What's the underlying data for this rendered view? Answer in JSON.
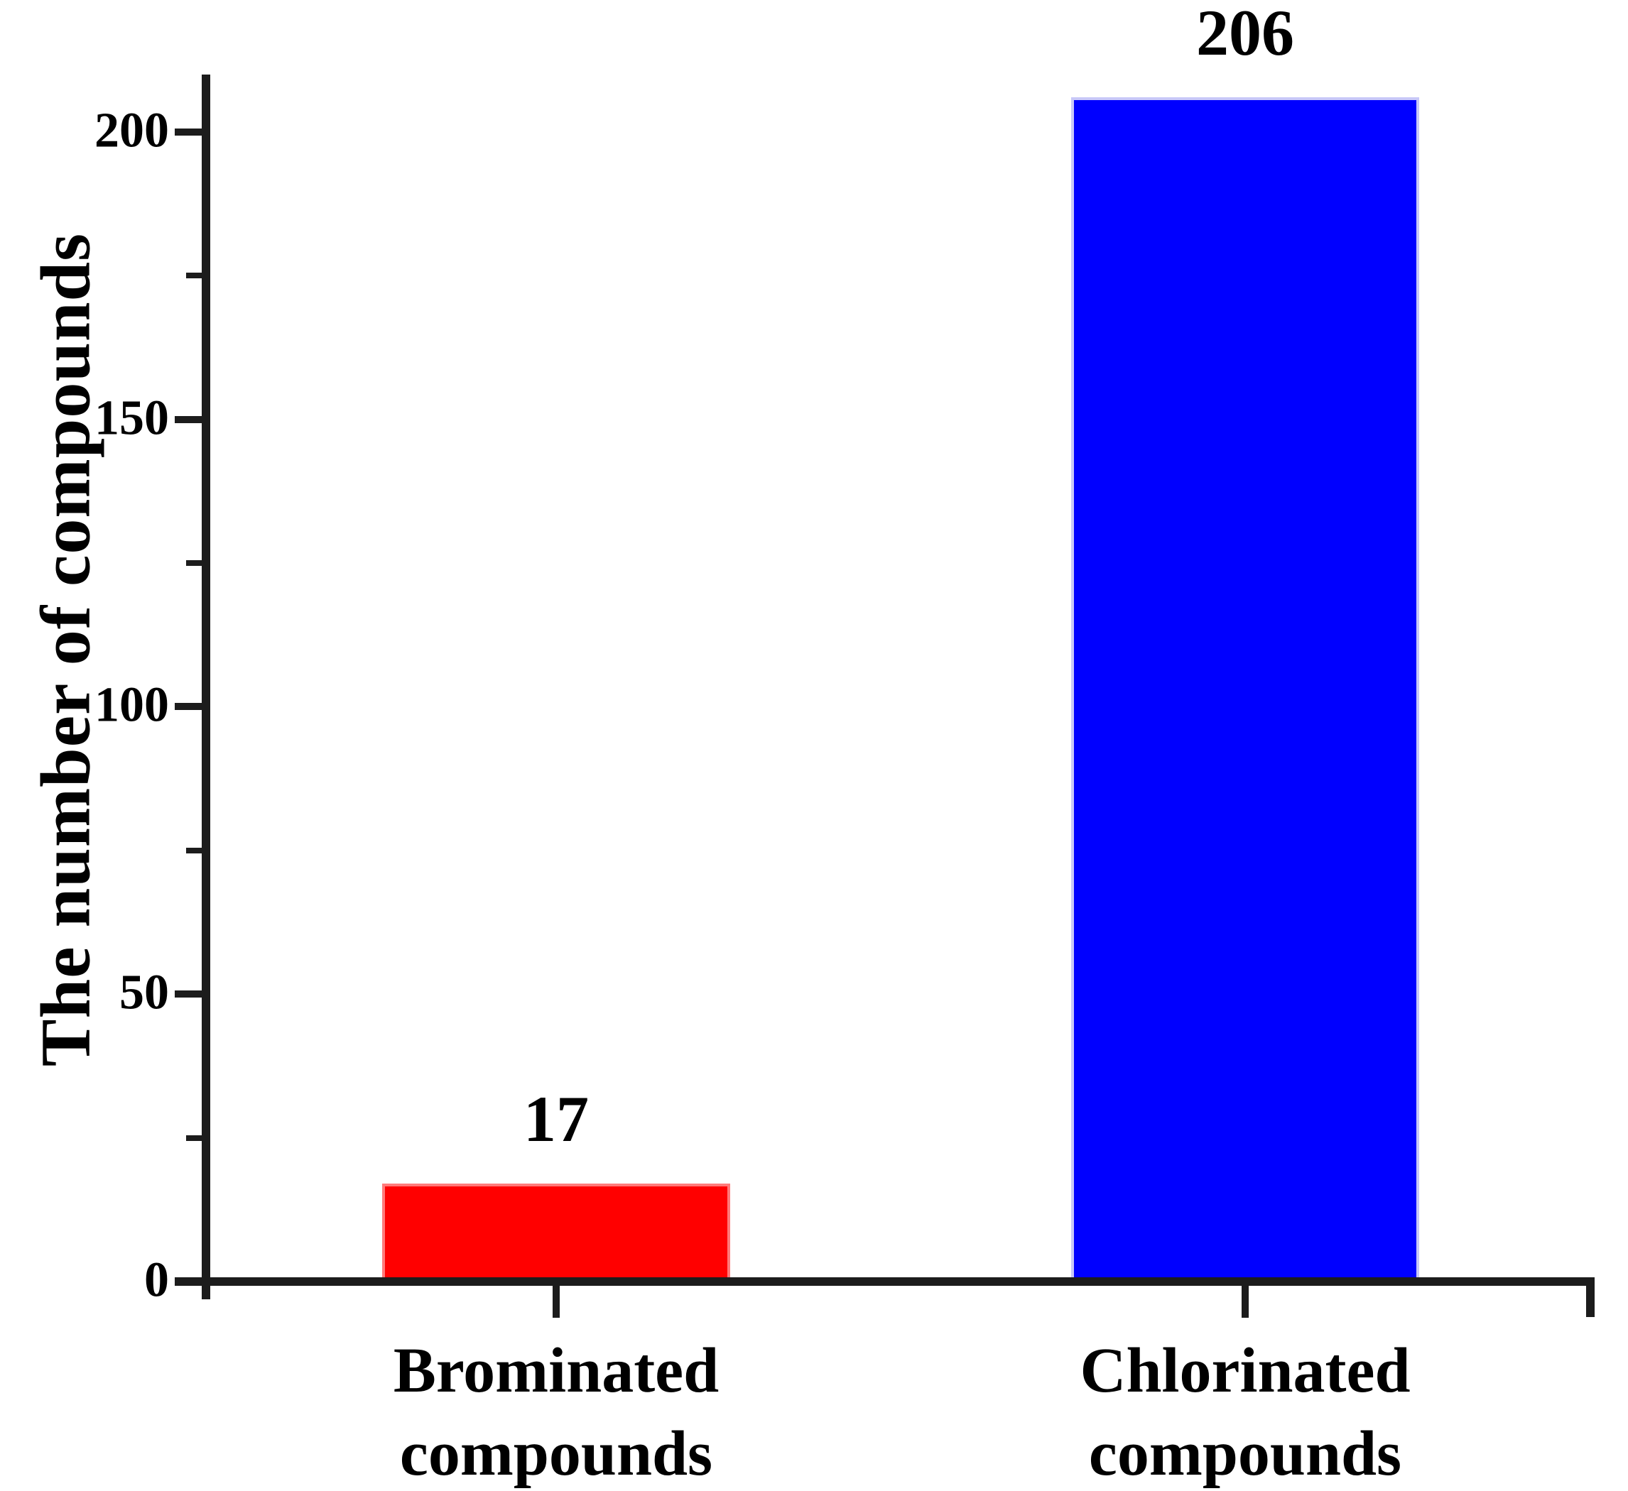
{
  "chart_data": {
    "type": "bar",
    "title": "",
    "ylabel": "The number of compounds",
    "xlabel": "",
    "categories": [
      [
        "Brominated",
        "compounds"
      ],
      [
        "Chlorinated",
        "compounds"
      ]
    ],
    "values": [
      17,
      206
    ],
    "bar_value_labels": [
      "17",
      "206"
    ],
    "bar_colors": [
      "#ff0000",
      "#0000ff"
    ],
    "bar_edge_colors": [
      "#ff7a7a",
      "#c8c8f8"
    ],
    "ylim": [
      0,
      210
    ],
    "yticks": [
      0,
      50,
      100,
      150,
      200
    ],
    "ytick_labels": [
      "0",
      "50",
      "100",
      "150",
      "200"
    ],
    "minor_yticks": [
      25,
      75,
      125,
      175
    ],
    "grid": false,
    "legend_position": "none",
    "axis_color": "#1c1c1c",
    "text_color": "#000000",
    "background_color": "#ffffff"
  }
}
